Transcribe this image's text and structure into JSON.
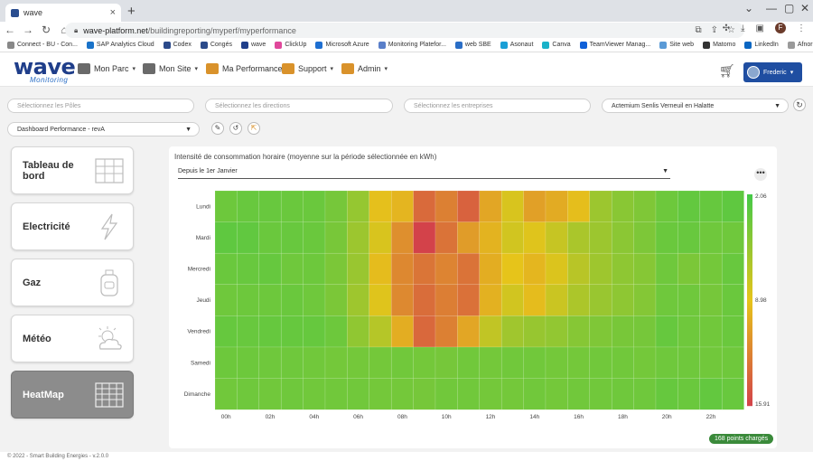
{
  "browser": {
    "tab_title": "wave",
    "url_host": "wave-platform.net",
    "url_path": "/buildingreporting/myperf/myperformance",
    "profile_initial": "F",
    "bookmarks": [
      "Connect - BU - Con...",
      "SAP Analytics Cloud",
      "Codex",
      "Congés",
      "wave",
      "ClickUp",
      "Microsoft Azure",
      "Monitoring Platefor...",
      "web SBE",
      "Asonaut",
      "Canva",
      "TeamViewer Manag...",
      "Site web",
      "Matomo",
      "LinkedIn",
      "Afnor"
    ]
  },
  "header": {
    "logo_main": "wave",
    "logo_sub": "Monitoring",
    "menu": [
      "Mon Parc",
      "Mon Site",
      "Ma Performance",
      "Support",
      "Admin"
    ],
    "user_name": "Frederic"
  },
  "filters": {
    "poles_placeholder": "Sélectionnez les Pôles",
    "directions_placeholder": "Sélectionnez les directions",
    "entreprises_placeholder": "Sélectionnez les entreprises",
    "site_value": "Actemium Senlis Verneuil en Halatte",
    "dashboard_value": "Dashboard Performance - revA"
  },
  "sidebar": {
    "items": [
      {
        "label": "Tableau de bord",
        "icon": "dashboard-grid-icon"
      },
      {
        "label": "Electricité",
        "icon": "lightning-icon"
      },
      {
        "label": "Gaz",
        "icon": "gas-bottle-icon"
      },
      {
        "label": "Météo",
        "icon": "weather-sun-cloud-icon"
      },
      {
        "label": "HeatMap",
        "icon": "heatmap-grid-icon"
      }
    ],
    "active": "HeatMap"
  },
  "panel": {
    "title": "Intensité de consommation horaire (moyenne sur la période sélectionnée en kWh)",
    "period": "Depuis le 1er Janvier",
    "points_badge": "168 points chargés"
  },
  "chart_data": {
    "type": "heatmap",
    "title": "Intensité de consommation horaire (moyenne sur la période sélectionnée en kWh)",
    "y_categories": [
      "Lundi",
      "Mardi",
      "Mercredi",
      "Jeudi",
      "Vendredi",
      "Samedi",
      "Dimanche"
    ],
    "x_categories": [
      "00h",
      "01h",
      "02h",
      "03h",
      "04h",
      "05h",
      "06h",
      "07h",
      "08h",
      "09h",
      "10h",
      "11h",
      "12h",
      "13h",
      "14h",
      "15h",
      "16h",
      "17h",
      "18h",
      "19h",
      "20h",
      "21h",
      "22h",
      "23h"
    ],
    "x_tick_labels": [
      "00h",
      "02h",
      "04h",
      "06h",
      "08h",
      "10h",
      "12h",
      "14h",
      "16h",
      "18h",
      "20h",
      "22h"
    ],
    "colorscale": {
      "low_color": "#44c948",
      "mid_color": "#e6c41a",
      "high_color": "#d3424a",
      "min": 2.06,
      "mid": 8.98,
      "max": 15.91,
      "tick_labels": [
        "2.06",
        "8.98",
        "15.91"
      ]
    },
    "values": [
      [
        3.8,
        3.6,
        3.6,
        3.7,
        3.7,
        4.2,
        5.5,
        9.2,
        9.8,
        13.8,
        12.6,
        14.2,
        10.6,
        8.4,
        10.9,
        10.3,
        9.3,
        5.8,
        5.0,
        4.6,
        3.8,
        3.4,
        3.5,
        3.2
      ],
      [
        3.2,
        3.3,
        3.7,
        3.6,
        3.7,
        4.3,
        5.8,
        8.4,
        11.8,
        15.9,
        13.3,
        11.1,
        9.9,
        8.1,
        8.7,
        7.6,
        6.4,
        5.8,
        5.1,
        4.5,
        3.7,
        3.6,
        3.9,
        3.9
      ],
      [
        3.7,
        3.6,
        3.5,
        3.9,
        3.8,
        4.4,
        5.7,
        9.4,
        12.2,
        13.2,
        12.4,
        13.3,
        10.2,
        9.0,
        9.7,
        8.5,
        7.0,
        5.9,
        5.2,
        4.9,
        3.9,
        4.4,
        4.1,
        3.6
      ],
      [
        3.9,
        3.8,
        3.8,
        3.7,
        3.9,
        4.4,
        5.9,
        8.7,
        12.1,
        13.6,
        12.7,
        13.4,
        10.0,
        8.1,
        9.4,
        7.8,
        6.5,
        5.7,
        5.2,
        4.8,
        3.9,
        3.9,
        4.2,
        3.7
      ],
      [
        3.5,
        3.6,
        3.5,
        3.5,
        3.5,
        3.8,
        5.3,
        6.9,
        10.2,
        13.9,
        12.6,
        10.6,
        7.4,
        6.0,
        5.6,
        5.4,
        4.9,
        4.6,
        4.3,
        4.2,
        3.5,
        3.9,
        4.0,
        3.7
      ],
      [
        3.8,
        3.8,
        3.9,
        3.9,
        4.0,
        4.1,
        4.1,
        4.1,
        4.0,
        4.1,
        4.2,
        4.0,
        4.1,
        4.0,
        4.0,
        4.1,
        4.1,
        4.0,
        4.0,
        4.1,
        3.9,
        3.9,
        4.0,
        3.9
      ],
      [
        4.0,
        3.9,
        4.0,
        3.9,
        4.0,
        4.0,
        4.0,
        4.1,
        4.1,
        4.2,
        4.0,
        4.0,
        4.1,
        4.1,
        4.0,
        4.1,
        4.0,
        4.0,
        3.9,
        3.9,
        3.5,
        3.7,
        3.4,
        3.6
      ]
    ]
  },
  "footer": "© 2022 - Smart Building Energies - v.2.0.0"
}
